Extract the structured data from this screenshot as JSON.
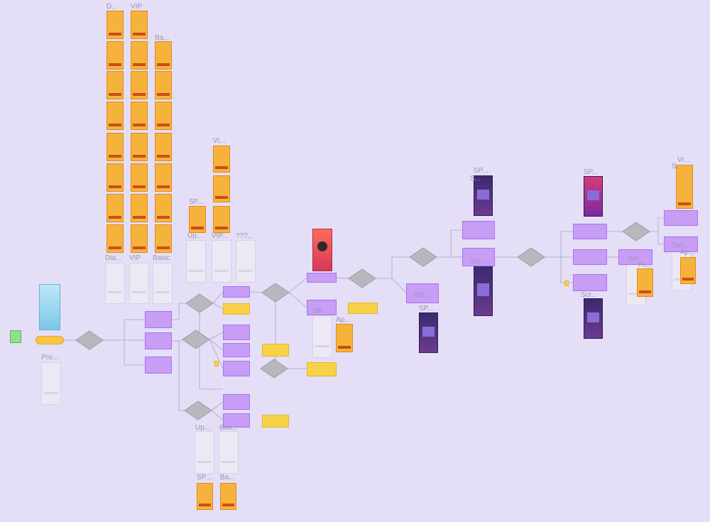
{
  "frames": [
    {
      "label": "D..."
    },
    {
      "label": "VIP"
    },
    {
      "label": "Ba..."
    },
    {
      "label": "Dia..."
    },
    {
      "label": "VIP"
    },
    {
      "label": "Basic"
    },
    {
      "label": "VI..."
    },
    {
      "label": "SP..."
    },
    {
      "label": "Up..."
    },
    {
      "label": "VIP..."
    },
    {
      "label": "???..."
    },
    {
      "label": "Pro..."
    },
    {
      "label": "SP"
    },
    {
      "label": "Ap..."
    },
    {
      "label": "Scr..."
    },
    {
      "label": "SP..."
    },
    {
      "label": "SP..."
    },
    {
      "label": "S..."
    },
    {
      "label": "Scr..."
    },
    {
      "label": "SP..."
    },
    {
      "label": "Scr..."
    },
    {
      "label": "Scr"
    },
    {
      "label": "Th..."
    },
    {
      "label": "VI..."
    },
    {
      "label": "S..."
    },
    {
      "label": "Suc..."
    },
    {
      "label": "Ap..."
    },
    {
      "label": "Up..."
    },
    {
      "label": "Bas..."
    },
    {
      "label": "SP..."
    },
    {
      "label": "Ba..."
    }
  ]
}
